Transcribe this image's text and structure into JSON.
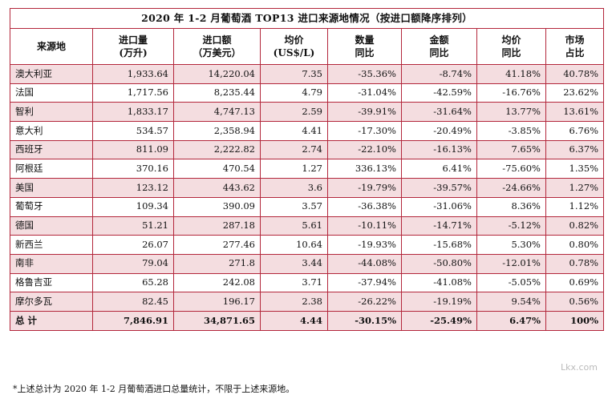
{
  "title": "2020 年 1-2 月葡萄酒 TOP13 进口来源地情况（按进口额降序排列）",
  "columns": [
    {
      "line1": "来源地",
      "line2": ""
    },
    {
      "line1": "进口量",
      "line2": "(万升)"
    },
    {
      "line1": "进口额",
      "line2": "（万美元）"
    },
    {
      "line1": "均价",
      "line2": "(US$/L)"
    },
    {
      "line1": "数量",
      "line2": "同比"
    },
    {
      "line1": "金额",
      "line2": "同比"
    },
    {
      "line1": "均价",
      "line2": "同比"
    },
    {
      "line1": "市场",
      "line2": "占比"
    }
  ],
  "rows": [
    [
      "澳大利亚",
      "1,933.64",
      "14,220.04",
      "7.35",
      "-35.36%",
      "-8.74%",
      "41.18%",
      "40.78%"
    ],
    [
      "法国",
      "1,717.56",
      "8,235.44",
      "4.79",
      "-31.04%",
      "-42.59%",
      "-16.76%",
      "23.62%"
    ],
    [
      "智利",
      "1,833.17",
      "4,747.13",
      "2.59",
      "-39.91%",
      "-31.64%",
      "13.77%",
      "13.61%"
    ],
    [
      "意大利",
      "534.57",
      "2,358.94",
      "4.41",
      "-17.30%",
      "-20.49%",
      "-3.85%",
      "6.76%"
    ],
    [
      "西班牙",
      "811.09",
      "2,222.82",
      "2.74",
      "-22.10%",
      "-16.13%",
      "7.65%",
      "6.37%"
    ],
    [
      "阿根廷",
      "370.16",
      "470.54",
      "1.27",
      "336.13%",
      "6.41%",
      "-75.60%",
      "1.35%"
    ],
    [
      "美国",
      "123.12",
      "443.62",
      "3.6",
      "-19.79%",
      "-39.57%",
      "-24.66%",
      "1.27%"
    ],
    [
      "葡萄牙",
      "109.34",
      "390.09",
      "3.57",
      "-36.38%",
      "-31.06%",
      "8.36%",
      "1.12%"
    ],
    [
      "德国",
      "51.21",
      "287.18",
      "5.61",
      "-10.11%",
      "-14.71%",
      "-5.12%",
      "0.82%"
    ],
    [
      "新西兰",
      "26.07",
      "277.46",
      "10.64",
      "-19.93%",
      "-15.68%",
      "5.30%",
      "0.80%"
    ],
    [
      "南非",
      "79.04",
      "271.8",
      "3.44",
      "-44.08%",
      "-50.80%",
      "-12.01%",
      "0.78%"
    ],
    [
      "格鲁吉亚",
      "65.28",
      "242.08",
      "3.71",
      "-37.94%",
      "-41.08%",
      "-5.05%",
      "0.69%"
    ],
    [
      "摩尔多瓦",
      "82.45",
      "196.17",
      "2.38",
      "-26.22%",
      "-19.19%",
      "9.54%",
      "0.56%"
    ]
  ],
  "total": [
    "总  计",
    "7,846.91",
    "34,871.65",
    "4.44",
    "-30.15%",
    "-25.49%",
    "6.47%",
    "100%"
  ],
  "note": "*上述总计为 2020 年 1-2 月葡萄酒进口总量统计，不限于上述来源地。",
  "watermark": "Lkx.com",
  "colors": {
    "border": "#b3263b",
    "highlight": "#f4dde0"
  }
}
